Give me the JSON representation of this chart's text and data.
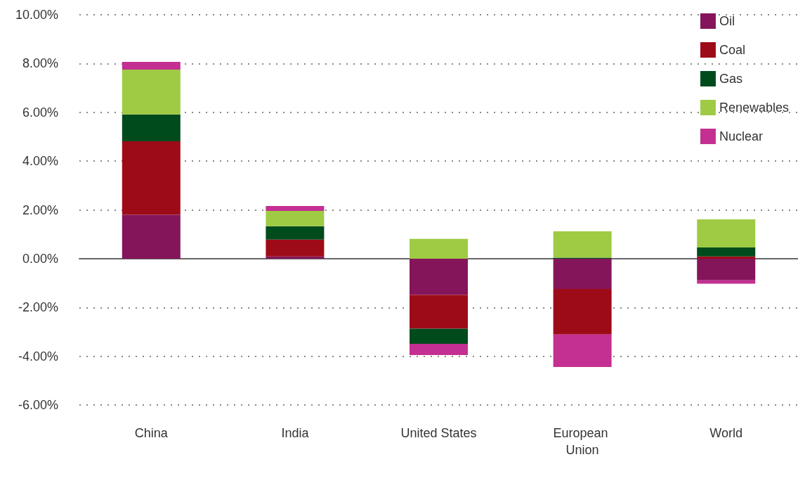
{
  "chart_data": {
    "type": "bar",
    "stacked": true,
    "categories": [
      "China",
      "India",
      "United States",
      "European Union",
      "World"
    ],
    "series": [
      {
        "name": "Oil",
        "color": "#85155a",
        "values": [
          1.8,
          0.09,
          -1.49,
          -1.24,
          -0.89
        ]
      },
      {
        "name": "Coal",
        "color": "#9e0b18",
        "values": [
          3.01,
          0.69,
          -1.38,
          -1.87,
          0.09
        ]
      },
      {
        "name": "Gas",
        "color": "#004b1c",
        "values": [
          1.1,
          0.55,
          -0.62,
          0.04,
          0.37
        ]
      },
      {
        "name": "Renewables",
        "color": "#9ecb43",
        "values": [
          1.84,
          0.63,
          0.81,
          1.08,
          1.15
        ]
      },
      {
        "name": "Nuclear",
        "color": "#c42f92",
        "values": [
          0.32,
          0.2,
          -0.46,
          -1.33,
          -0.14
        ]
      }
    ],
    "ylim": [
      -6,
      10
    ],
    "yticks": [
      {
        "value": -6,
        "label": "-6.00%"
      },
      {
        "value": -4,
        "label": "-4.00%"
      },
      {
        "value": -2,
        "label": "-2.00%"
      },
      {
        "value": 0,
        "label": "0.00%"
      },
      {
        "value": 2,
        "label": "2.00%"
      },
      {
        "value": 4,
        "label": "4.00%"
      },
      {
        "value": 6,
        "label": "6.00%"
      },
      {
        "value": 8,
        "label": "8.00%"
      },
      {
        "value": 10,
        "label": "10.00%"
      }
    ],
    "grid": "y",
    "legend": "top right"
  }
}
